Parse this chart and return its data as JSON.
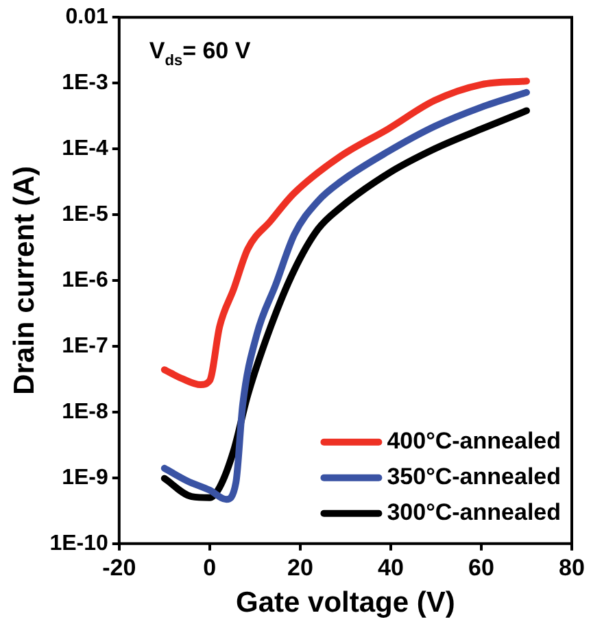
{
  "chart_data": {
    "type": "line",
    "xlabel": "Gate voltage (V)",
    "ylabel": "Drain current (A)",
    "annotations": [
      "V$_{ds}$= 60 V"
    ],
    "xlim": [
      -20,
      80
    ],
    "xticks": [
      -20,
      0,
      20,
      40,
      60,
      80
    ],
    "ylim": [
      1e-10,
      0.01
    ],
    "log": "y",
    "yticks": [
      {
        "value": 1e-10,
        "label": "1E-10"
      },
      {
        "value": 1e-09,
        "label": "1E-9"
      },
      {
        "value": 1e-08,
        "label": "1E-8"
      },
      {
        "value": 1e-07,
        "label": "1E-7"
      },
      {
        "value": 1e-06,
        "label": "1E-6"
      },
      {
        "value": 1e-05,
        "label": "1E-5"
      },
      {
        "value": 0.0001,
        "label": "1E-4"
      },
      {
        "value": 0.001,
        "label": "1E-3"
      },
      0.01
    ],
    "grid": false,
    "legend": "bottom right",
    "marker": "none",
    "line_style": "solid",
    "series": [
      {
        "name": "400°C-annealed",
        "color": "#ee3124",
        "x": [
          -10,
          -6,
          -2,
          0,
          2.2,
          5.3,
          8.4,
          13.5,
          18.6,
          29,
          39.4,
          49.6,
          60,
          70
        ],
        "values": [
          4.4e-08,
          3.2e-08,
          2.6e-08,
          3e-08,
          2e-07,
          7.4e-07,
          3e-06,
          8.1e-06,
          2.1e-05,
          7.8e-05,
          0.0002,
          0.00054,
          0.00095,
          0.00107
        ]
      },
      {
        "name": "350°C-annealed",
        "color": "#3a53a4",
        "x": [
          -10,
          -5,
          0,
          3.7,
          5.8,
          7.3,
          10.4,
          14.6,
          18.7,
          23.9,
          29,
          39.4,
          49.7,
          60,
          70
        ],
        "values": [
          1.4e-09,
          9e-10,
          6.5e-10,
          4.7e-10,
          8.5e-10,
          1.3e-08,
          1.5e-07,
          8.7e-07,
          5e-06,
          1.6e-05,
          3.2e-05,
          9.1e-05,
          0.00022,
          0.00043,
          0.00072
        ]
      },
      {
        "name": "300°C-annealed",
        "color": "#000000",
        "x": [
          -10,
          -4,
          0,
          2.2,
          5.3,
          8.4,
          13.5,
          18.6,
          23.9,
          29,
          39.4,
          49.7,
          60,
          70
        ],
        "values": [
          9.8e-10,
          5.2e-10,
          5e-10,
          7.2e-10,
          2.6e-09,
          1.8e-08,
          2e-07,
          1.4e-06,
          6e-06,
          1.3e-05,
          4.2e-05,
          0.0001,
          0.0002,
          0.00038
        ]
      }
    ]
  }
}
